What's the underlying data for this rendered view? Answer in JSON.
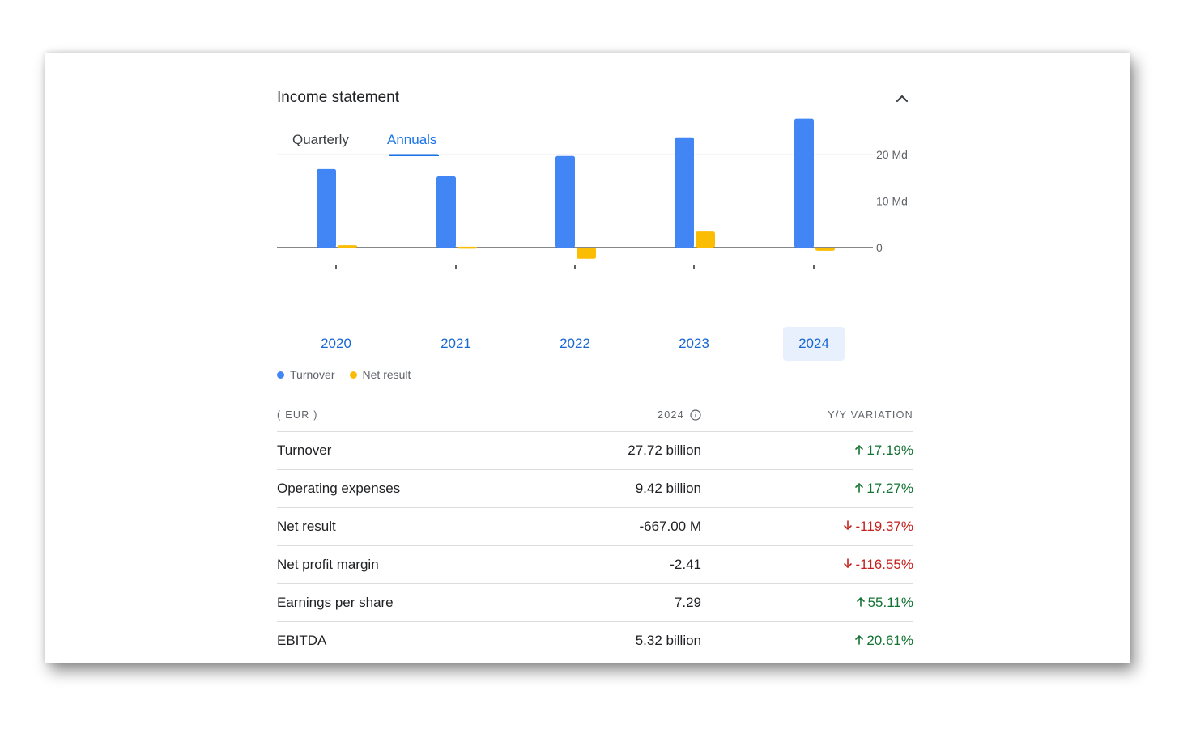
{
  "section": {
    "title": "Income statement"
  },
  "tabs": [
    {
      "label": "Quarterly",
      "active": false
    },
    {
      "label": "Annuals",
      "active": true
    }
  ],
  "chart_data": {
    "type": "bar",
    "categories": [
      "2020",
      "2021",
      "2022",
      "2023",
      "2024"
    ],
    "selected_category": "2024",
    "series": [
      {
        "name": "Turnover",
        "color": "#4285f4",
        "values": [
          16.9,
          15.3,
          19.7,
          23.7,
          27.72
        ]
      },
      {
        "name": "Net result",
        "color": "#fbbc04",
        "values": [
          0.5,
          0.2,
          -2.4,
          3.45,
          -0.667
        ]
      }
    ],
    "y_ticks": [
      {
        "value": 20,
        "label": "20 Md"
      },
      {
        "value": 10,
        "label": "10 Md"
      },
      {
        "value": 0,
        "label": "0"
      }
    ],
    "ylim": [
      -3,
      28
    ],
    "y_axis_position": "right",
    "grid": true,
    "legend_position": "bottom-left"
  },
  "table": {
    "headers": {
      "label": "( EUR )",
      "value": "2024",
      "variation": "Y/Y VARIATION"
    },
    "rows": [
      {
        "label": "Turnover",
        "value": "27.72 billion",
        "variation": "17.19%",
        "direction": "up"
      },
      {
        "label": "Operating expenses",
        "value": "9.42 billion",
        "variation": "17.27%",
        "direction": "up"
      },
      {
        "label": "Net result",
        "value": "-667.00 M",
        "variation": "-119.37%",
        "direction": "down"
      },
      {
        "label": "Net profit margin",
        "value": "-2.41",
        "variation": "-116.55%",
        "direction": "down"
      },
      {
        "label": "Earnings per share",
        "value": "7.29",
        "variation": "55.11%",
        "direction": "up"
      },
      {
        "label": "EBITDA",
        "value": "5.32 billion",
        "variation": "20.61%",
        "direction": "up"
      }
    ]
  },
  "icons": {
    "collapse": "chevron-up-icon",
    "info": "info-icon",
    "up": "arrow-up-icon",
    "down": "arrow-down-icon"
  },
  "colors": {
    "accent": "#1a73e8",
    "positive": "#137333",
    "negative": "#c5221f",
    "selected_bg": "#e8f0fe"
  }
}
